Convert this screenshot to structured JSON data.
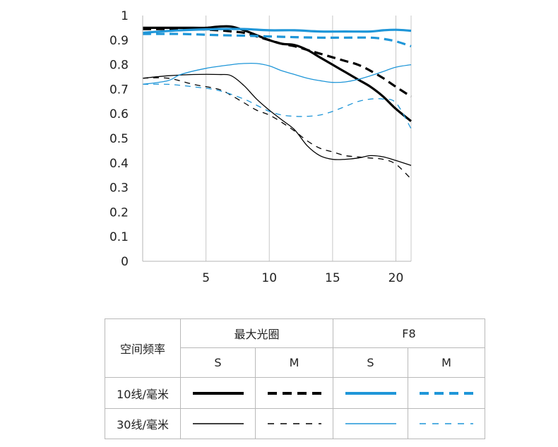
{
  "chart_data": {
    "type": "line",
    "xlim": [
      0,
      21.2
    ],
    "ylim": [
      0,
      1
    ],
    "xticks": [
      5,
      10,
      15,
      20
    ],
    "yticks": [
      0,
      0.1,
      0.2,
      0.3,
      0.4,
      0.5,
      0.6,
      0.7,
      0.8,
      0.9,
      1
    ],
    "xtick_labels": [
      "5",
      "10",
      "15",
      "20"
    ],
    "ytick_labels": [
      "0",
      "0.1",
      "0.2",
      "0.3",
      "0.4",
      "0.5",
      "0.6",
      "0.7",
      "0.8",
      "0.9",
      "1"
    ],
    "grid": "vertical",
    "series": [
      {
        "aperture": "最大光圈",
        "direction": "S",
        "frequency": "10线/毫米",
        "color": "#000000",
        "width": "thick",
        "dash": "solid",
        "points": [
          [
            0,
            0.95
          ],
          [
            2,
            0.95
          ],
          [
            4,
            0.95
          ],
          [
            5,
            0.95
          ],
          [
            6,
            0.955
          ],
          [
            7,
            0.955
          ],
          [
            8,
            0.94
          ],
          [
            9,
            0.92
          ],
          [
            10,
            0.9
          ],
          [
            11,
            0.885
          ],
          [
            12,
            0.88
          ],
          [
            13,
            0.86
          ],
          [
            14,
            0.83
          ],
          [
            15,
            0.8
          ],
          [
            16,
            0.77
          ],
          [
            17,
            0.74
          ],
          [
            18,
            0.71
          ],
          [
            19,
            0.67
          ],
          [
            20,
            0.62
          ],
          [
            21.2,
            0.57
          ]
        ]
      },
      {
        "aperture": "最大光圈",
        "direction": "M",
        "frequency": "10线/毫米",
        "color": "#000000",
        "width": "thick",
        "dash": "dashed",
        "points": [
          [
            0,
            0.945
          ],
          [
            2,
            0.945
          ],
          [
            4,
            0.945
          ],
          [
            6,
            0.94
          ],
          [
            7,
            0.935
          ],
          [
            8,
            0.93
          ],
          [
            9,
            0.915
          ],
          [
            10,
            0.9
          ],
          [
            11,
            0.885
          ],
          [
            12,
            0.875
          ],
          [
            13,
            0.86
          ],
          [
            14,
            0.845
          ],
          [
            15,
            0.83
          ],
          [
            16,
            0.815
          ],
          [
            17,
            0.8
          ],
          [
            18,
            0.775
          ],
          [
            19,
            0.745
          ],
          [
            20,
            0.71
          ],
          [
            21.2,
            0.67
          ]
        ]
      },
      {
        "aperture": "F8",
        "direction": "S",
        "frequency": "10线/毫米",
        "color": "#1f96d8",
        "width": "thick",
        "dash": "solid",
        "points": [
          [
            0,
            0.93
          ],
          [
            3,
            0.94
          ],
          [
            6,
            0.945
          ],
          [
            8,
            0.945
          ],
          [
            10,
            0.94
          ],
          [
            12,
            0.94
          ],
          [
            14,
            0.935
          ],
          [
            16,
            0.935
          ],
          [
            18,
            0.935
          ],
          [
            19,
            0.94
          ],
          [
            20,
            0.942
          ],
          [
            21.2,
            0.938
          ]
        ]
      },
      {
        "aperture": "F8",
        "direction": "M",
        "frequency": "10线/毫米",
        "color": "#1f96d8",
        "width": "thick",
        "dash": "dashed",
        "points": [
          [
            0,
            0.925
          ],
          [
            3,
            0.925
          ],
          [
            6,
            0.92
          ],
          [
            8,
            0.918
          ],
          [
            10,
            0.915
          ],
          [
            12,
            0.912
          ],
          [
            14,
            0.91
          ],
          [
            16,
            0.91
          ],
          [
            18,
            0.91
          ],
          [
            19,
            0.905
          ],
          [
            20,
            0.895
          ],
          [
            21.2,
            0.875
          ]
        ]
      },
      {
        "aperture": "最大光圈",
        "direction": "S",
        "frequency": "30线/毫米",
        "color": "#000000",
        "width": "thin",
        "dash": "solid",
        "points": [
          [
            0,
            0.745
          ],
          [
            2,
            0.755
          ],
          [
            4,
            0.76
          ],
          [
            6,
            0.76
          ],
          [
            7,
            0.755
          ],
          [
            8,
            0.715
          ],
          [
            9,
            0.66
          ],
          [
            10,
            0.615
          ],
          [
            11,
            0.575
          ],
          [
            12,
            0.535
          ],
          [
            13,
            0.47
          ],
          [
            14,
            0.43
          ],
          [
            15,
            0.415
          ],
          [
            16,
            0.415
          ],
          [
            17,
            0.42
          ],
          [
            18,
            0.43
          ],
          [
            19,
            0.425
          ],
          [
            20,
            0.41
          ],
          [
            21.2,
            0.39
          ]
        ]
      },
      {
        "aperture": "最大光圈",
        "direction": "M",
        "frequency": "30线/毫米",
        "color": "#000000",
        "width": "thin",
        "dash": "dashed",
        "points": [
          [
            0,
            0.745
          ],
          [
            2,
            0.745
          ],
          [
            4,
            0.72
          ],
          [
            6,
            0.7
          ],
          [
            7,
            0.675
          ],
          [
            8,
            0.645
          ],
          [
            9,
            0.615
          ],
          [
            10,
            0.595
          ],
          [
            11,
            0.565
          ],
          [
            12,
            0.53
          ],
          [
            13,
            0.49
          ],
          [
            14,
            0.46
          ],
          [
            15,
            0.445
          ],
          [
            16,
            0.43
          ],
          [
            17,
            0.425
          ],
          [
            18,
            0.42
          ],
          [
            19,
            0.415
          ],
          [
            20,
            0.395
          ],
          [
            21.2,
            0.335
          ]
        ]
      },
      {
        "aperture": "F8",
        "direction": "S",
        "frequency": "30线/毫米",
        "color": "#1f96d8",
        "width": "thin",
        "dash": "solid",
        "points": [
          [
            0,
            0.72
          ],
          [
            2,
            0.735
          ],
          [
            3,
            0.76
          ],
          [
            5,
            0.785
          ],
          [
            7,
            0.8
          ],
          [
            8,
            0.805
          ],
          [
            9,
            0.805
          ],
          [
            10,
            0.795
          ],
          [
            11,
            0.775
          ],
          [
            12,
            0.76
          ],
          [
            13,
            0.745
          ],
          [
            14,
            0.735
          ],
          [
            15,
            0.728
          ],
          [
            16,
            0.73
          ],
          [
            17,
            0.74
          ],
          [
            18,
            0.755
          ],
          [
            19,
            0.772
          ],
          [
            20,
            0.79
          ],
          [
            21.2,
            0.8
          ]
        ]
      },
      {
        "aperture": "F8",
        "direction": "M",
        "frequency": "30线/毫米",
        "color": "#1f96d8",
        "width": "thin",
        "dash": "dashed",
        "points": [
          [
            0,
            0.72
          ],
          [
            2,
            0.72
          ],
          [
            4,
            0.71
          ],
          [
            6,
            0.695
          ],
          [
            8,
            0.66
          ],
          [
            9,
            0.635
          ],
          [
            10,
            0.61
          ],
          [
            11,
            0.595
          ],
          [
            12,
            0.59
          ],
          [
            13,
            0.59
          ],
          [
            14,
            0.595
          ],
          [
            15,
            0.61
          ],
          [
            16,
            0.63
          ],
          [
            17,
            0.65
          ],
          [
            18,
            0.66
          ],
          [
            19,
            0.66
          ],
          [
            20,
            0.645
          ],
          [
            21.2,
            0.54
          ]
        ]
      }
    ]
  },
  "legend": {
    "corner": "空间频率",
    "apertures": [
      "最大光圈",
      "F8"
    ],
    "directions": [
      "S",
      "M",
      "S",
      "M"
    ],
    "rows": [
      {
        "label": "10线/毫米",
        "width": "thick"
      },
      {
        "label": "30线/毫米",
        "width": "thin"
      }
    ],
    "colors": {
      "max_aperture": "#000000",
      "f8": "#1f96d8"
    }
  }
}
